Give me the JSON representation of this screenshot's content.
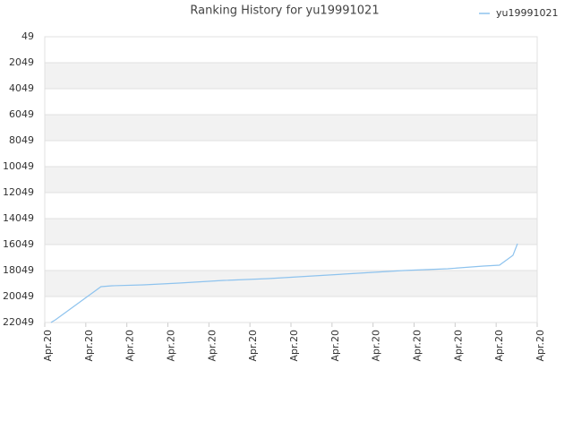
{
  "chart_data": {
    "type": "line",
    "title": "Ranking History for yu19991021",
    "series": [
      {
        "name": "yu19991021",
        "color": "#8ec3ee",
        "x": [
          0.15,
          0.26,
          1.37,
          1.64,
          2.4,
          3.27,
          4.36,
          5.45,
          6.55,
          7.64,
          8.73,
          9.82,
          10.69,
          11.08,
          11.41,
          11.52
        ],
        "values": [
          22049,
          21842,
          19290,
          19221,
          19153,
          19015,
          18808,
          18670,
          18463,
          18256,
          18049,
          17911,
          17704,
          17635,
          16877,
          15980
        ]
      }
    ],
    "xlim": [
      0,
      12
    ],
    "xticks": [
      {
        "value": 0,
        "label": "Apr.20"
      },
      {
        "value": 1,
        "label": "Apr.20"
      },
      {
        "value": 2,
        "label": "Apr.20"
      },
      {
        "value": 3,
        "label": "Apr.20"
      },
      {
        "value": 4,
        "label": "Apr.20"
      },
      {
        "value": 5,
        "label": "Apr.20"
      },
      {
        "value": 6,
        "label": "Apr.20"
      },
      {
        "value": 7,
        "label": "Apr.20"
      },
      {
        "value": 8,
        "label": "Apr.20"
      },
      {
        "value": 9,
        "label": "Apr.20"
      },
      {
        "value": 10,
        "label": "Apr.20"
      },
      {
        "value": 11,
        "label": "Apr.20"
      },
      {
        "value": 12,
        "label": "Apr.20"
      }
    ],
    "ylim": [
      22049,
      49
    ],
    "yticks": [
      49,
      2049,
      4049,
      6049,
      8049,
      10049,
      12049,
      14049,
      16049,
      18049,
      20049,
      22049
    ],
    "grid": true,
    "legend": "top-right"
  }
}
